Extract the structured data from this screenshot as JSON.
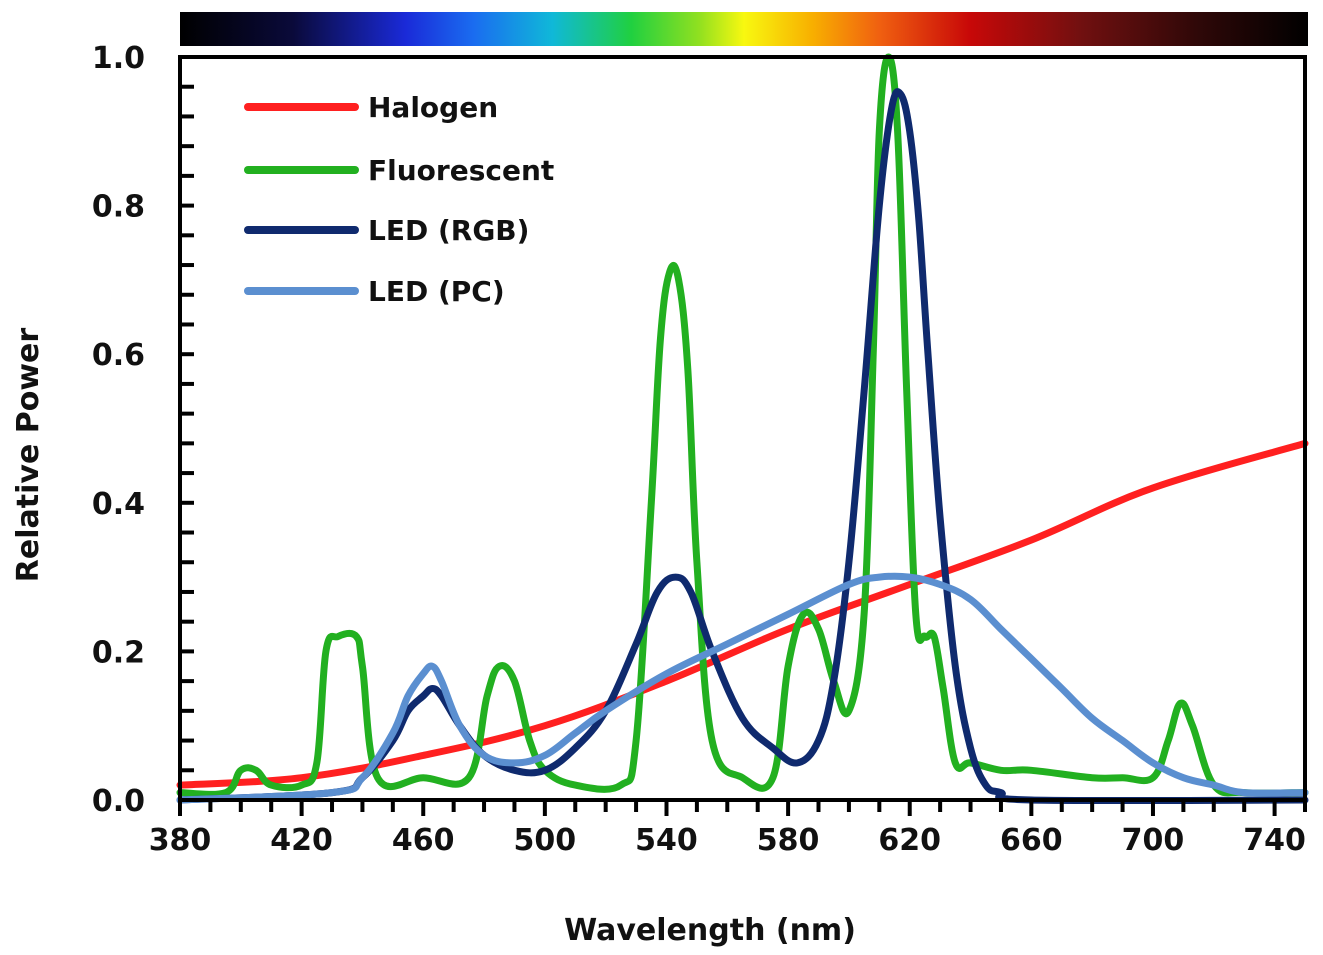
{
  "chart_data": {
    "type": "line",
    "xlabel": "Wavelength (nm)",
    "ylabel": "Relative Power",
    "xlim": [
      380,
      750
    ],
    "ylim": [
      0,
      1.0
    ],
    "x_ticks": [
      380,
      420,
      460,
      500,
      540,
      580,
      620,
      660,
      700,
      740
    ],
    "y_ticks": [
      0.0,
      0.2,
      0.4,
      0.6,
      0.8,
      1.0
    ],
    "y_tick_labels": [
      "0.0",
      "0.2",
      "0.4",
      "0.6",
      "0.8",
      "1.0"
    ],
    "grid": false,
    "legend_position": "top-left",
    "spectrum_bar": true,
    "series": [
      {
        "name": "Halogen",
        "color": "#ff2020",
        "x": [
          380,
          420,
          460,
          500,
          540,
          580,
          620,
          660,
          700,
          750
        ],
        "y": [
          0.02,
          0.03,
          0.06,
          0.1,
          0.16,
          0.23,
          0.29,
          0.35,
          0.42,
          0.48
        ]
      },
      {
        "name": "Fluorescent",
        "color": "#22b020",
        "x": [
          380,
          395,
          400,
          405,
          410,
          420,
          425,
          428,
          432,
          438,
          440,
          445,
          460,
          475,
          481,
          485,
          490,
          495,
          500,
          510,
          525,
          530,
          535,
          538,
          541,
          544,
          547,
          550,
          555,
          565,
          575,
          580,
          585,
          590,
          595,
          600,
          605,
          608,
          610,
          613,
          616,
          619,
          622,
          625,
          628,
          631,
          635,
          640,
          650,
          660,
          680,
          690,
          700,
          705,
          709,
          713,
          720,
          730,
          750
        ],
        "y": [
          0.01,
          0.01,
          0.04,
          0.04,
          0.02,
          0.02,
          0.05,
          0.2,
          0.22,
          0.22,
          0.18,
          0.03,
          0.03,
          0.03,
          0.14,
          0.18,
          0.16,
          0.08,
          0.04,
          0.02,
          0.02,
          0.08,
          0.4,
          0.62,
          0.71,
          0.7,
          0.58,
          0.32,
          0.08,
          0.03,
          0.03,
          0.18,
          0.25,
          0.23,
          0.16,
          0.12,
          0.25,
          0.6,
          0.9,
          1.0,
          0.9,
          0.55,
          0.25,
          0.22,
          0.22,
          0.15,
          0.05,
          0.05,
          0.04,
          0.04,
          0.03,
          0.03,
          0.03,
          0.08,
          0.13,
          0.1,
          0.02,
          0.01,
          0.01
        ]
      },
      {
        "name": "LED (RGB)",
        "color": "#0f2a6e",
        "x": [
          380,
          430,
          440,
          450,
          455,
          460,
          463,
          466,
          472,
          480,
          490,
          500,
          510,
          520,
          530,
          537,
          543,
          548,
          555,
          565,
          575,
          583,
          590,
          595,
          600,
          605,
          610,
          614,
          617,
          620,
          623,
          626,
          630,
          635,
          640,
          645,
          650,
          660,
          750
        ],
        "y": [
          0.0,
          0.01,
          0.03,
          0.08,
          0.12,
          0.14,
          0.15,
          0.14,
          0.1,
          0.06,
          0.04,
          0.04,
          0.07,
          0.12,
          0.21,
          0.28,
          0.3,
          0.28,
          0.2,
          0.11,
          0.07,
          0.05,
          0.08,
          0.16,
          0.32,
          0.55,
          0.8,
          0.93,
          0.95,
          0.9,
          0.78,
          0.6,
          0.38,
          0.18,
          0.07,
          0.02,
          0.01,
          0.0,
          0.0
        ]
      },
      {
        "name": "LED (PC)",
        "color": "#5b8fd0",
        "x": [
          380,
          430,
          440,
          450,
          455,
          460,
          463,
          466,
          472,
          480,
          490,
          500,
          510,
          520,
          540,
          560,
          580,
          600,
          610,
          620,
          630,
          640,
          650,
          660,
          670,
          680,
          690,
          700,
          710,
          720,
          730,
          750
        ],
        "y": [
          0.0,
          0.01,
          0.03,
          0.09,
          0.14,
          0.17,
          0.18,
          0.16,
          0.1,
          0.06,
          0.05,
          0.06,
          0.09,
          0.12,
          0.17,
          0.21,
          0.25,
          0.29,
          0.3,
          0.3,
          0.29,
          0.27,
          0.23,
          0.19,
          0.15,
          0.11,
          0.08,
          0.05,
          0.03,
          0.02,
          0.01,
          0.01
        ]
      }
    ]
  }
}
